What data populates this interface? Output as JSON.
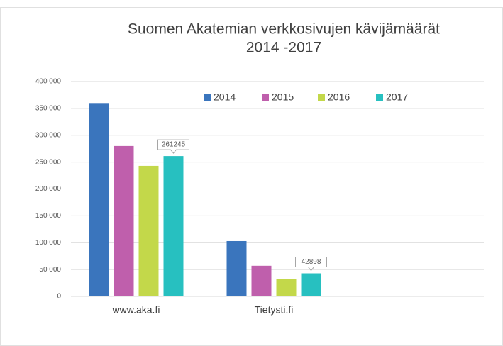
{
  "chart_data": {
    "type": "bar",
    "title": "Suomen Akatemian verkkosivujen kävijämäärät",
    "subtitle": "2014 -2017",
    "categories": [
      "www.aka.fi",
      "Tietysti.fi",
      null
    ],
    "series": [
      {
        "name": "2014",
        "color": "#3a75bd",
        "values": [
          360000,
          103000,
          null
        ]
      },
      {
        "name": "2015",
        "color": "#bf5fac",
        "values": [
          280000,
          57000,
          null
        ]
      },
      {
        "name": "2016",
        "color": "#c3d84a",
        "values": [
          243000,
          32000,
          null
        ]
      },
      {
        "name": "2017",
        "color": "#27c0c0",
        "values": [
          261245,
          42898,
          null
        ],
        "value_labels": [
          "261245",
          "42898",
          null
        ]
      }
    ],
    "ylim": [
      0,
      400000
    ],
    "yticks": [
      0,
      {
        "value": 50000,
        "label": "50 000"
      },
      {
        "value": 100000,
        "label": "100 000"
      },
      {
        "value": 150000,
        "label": "150 000"
      },
      {
        "value": 200000,
        "label": "200 000"
      },
      {
        "value": 250000,
        "label": "250 000"
      },
      {
        "value": 300000,
        "label": "300 000"
      },
      {
        "value": 350000,
        "label": "350 000"
      },
      {
        "value": 400000,
        "label": "400 000"
      }
    ],
    "grid": true,
    "legend": "top"
  }
}
